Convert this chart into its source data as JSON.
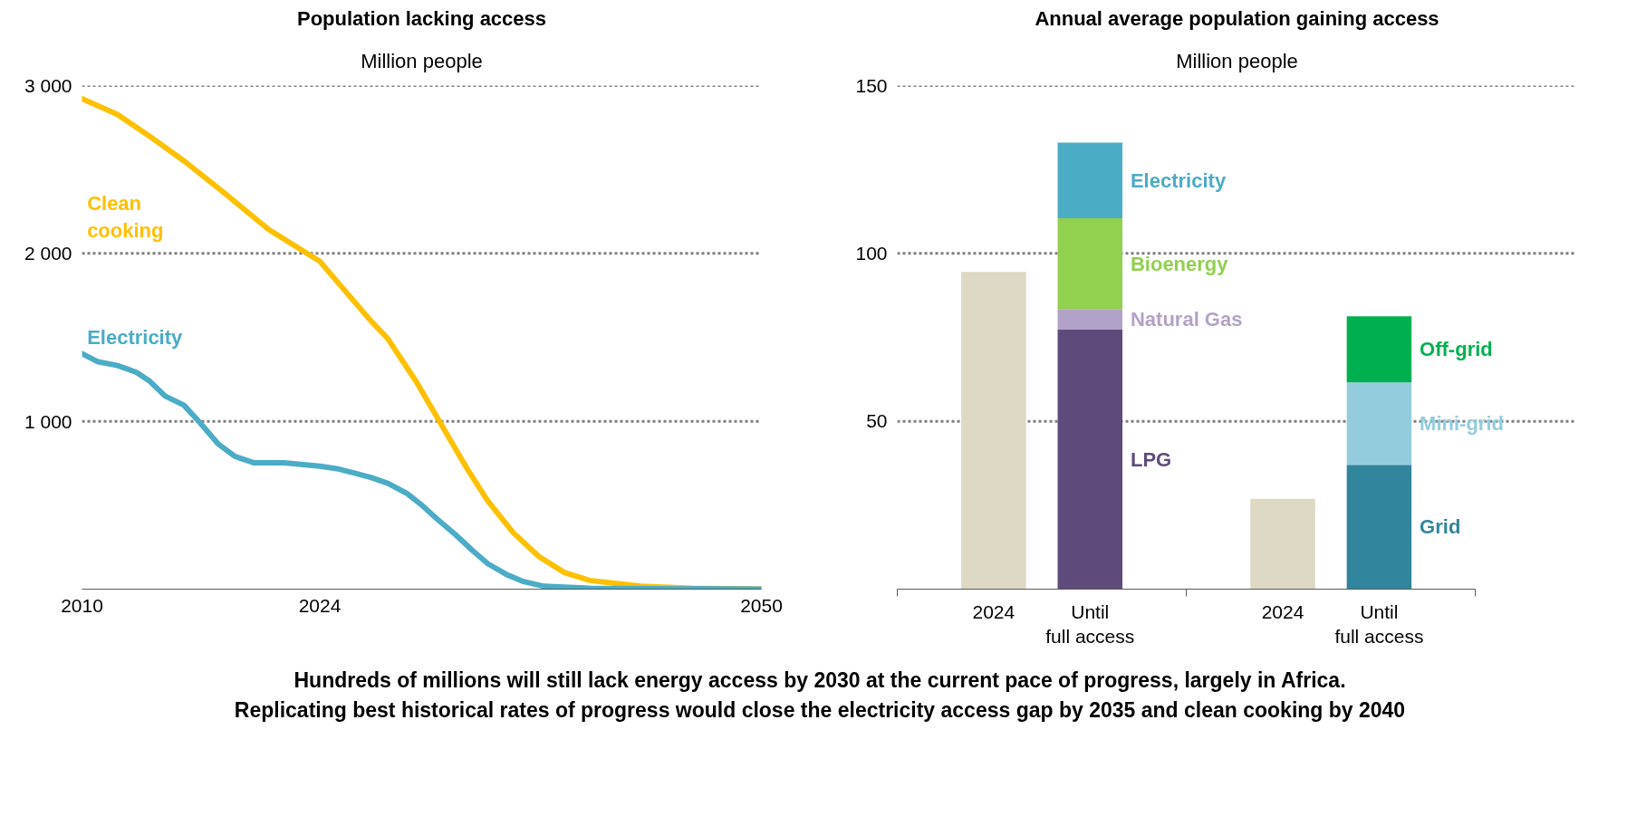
{
  "chart_data": [
    {
      "type": "line",
      "title": "Population lacking access",
      "subtitle": "Million people",
      "xlim": [
        2010,
        2050
      ],
      "ylim": [
        0,
        3000
      ],
      "xticks": [
        2010,
        2024,
        2050
      ],
      "yticks": [
        {
          "value": 1000,
          "label": "1 000"
        },
        {
          "value": 2000,
          "label": "2 000"
        },
        {
          "value": 3000,
          "label": "3 000"
        }
      ],
      "grid": "y",
      "annotations": [
        "Hundreds of millions will still lack energy access by 2030 at the current pace of progress, largely in Africa.",
        "Replicating best historical rates of progress would close the electricity access gap by 2035 and clean cooking by 2040"
      ],
      "series": [
        {
          "name": "Clean cooking",
          "color": "#ffc000",
          "x": [
            2010,
            2012.1,
            2014,
            2016.1,
            2018.3,
            2021,
            2022.5,
            2024,
            2025.5,
            2027,
            2028,
            2029.7,
            2031.2,
            2032.7,
            2033.9,
            2035.4,
            2036.9,
            2038.4,
            2039.9,
            2042.9,
            2045.9,
            2050
          ],
          "values": [
            2922,
            2827,
            2697,
            2544,
            2367,
            2142,
            2048,
            1953,
            1776,
            1599,
            1493,
            1233,
            973,
            713,
            524,
            335,
            194,
            99,
            52,
            17,
            5,
            0
          ]
        },
        {
          "name": "Electricity",
          "color": "#4bacc6",
          "x": [
            2010,
            2010.9,
            2012.1,
            2013.2,
            2014,
            2014.9,
            2016,
            2016.9,
            2018,
            2019,
            2020.1,
            2021.9,
            2024,
            2025,
            2026.1,
            2027,
            2028,
            2029.1,
            2030,
            2030.9,
            2032,
            2033,
            2033.9,
            2035,
            2036,
            2037.2,
            2039.9,
            2050
          ],
          "values": [
            1403,
            1356,
            1332,
            1292,
            1238,
            1150,
            1096,
            997,
            867,
            791,
            753,
            753,
            732,
            718,
            690,
            666,
            631,
            572,
            501,
            418,
            324,
            229,
            151,
            87,
            45,
            17,
            5,
            0
          ]
        }
      ]
    },
    {
      "type": "bar",
      "stacked": true,
      "title": "Annual average population gaining access",
      "subtitle": "Million people",
      "ylim": [
        0,
        150
      ],
      "yticks": [
        50,
        100,
        150
      ],
      "grid": "y",
      "categories": [
        "2024",
        "Until full access",
        "2024",
        "Until full access"
      ],
      "series": [
        {
          "color": "#ddd8c4",
          "values": [
            94.5,
            null,
            26.9,
            null
          ]
        },
        {
          "name": "LPG",
          "color": "#5f4b7b",
          "values": [
            null,
            77.3,
            null,
            null
          ]
        },
        {
          "name": "Natural Gas",
          "color": "#b3a2c7",
          "values": [
            null,
            6.1,
            null,
            null
          ]
        },
        {
          "name": "Bioenergy",
          "color": "#92d050",
          "values": [
            null,
            27.1,
            null,
            null
          ]
        },
        {
          "name": "Electricity",
          "color": "#4bacc6",
          "values": [
            null,
            22.5,
            null,
            null
          ]
        },
        {
          "name": "Grid",
          "color": "#31859c",
          "values": [
            null,
            null,
            null,
            37.0
          ]
        },
        {
          "name": "Mini-grid",
          "color": "#93cddd",
          "values": [
            null,
            null,
            null,
            24.6
          ]
        },
        {
          "name": "Off-grid",
          "color": "#00b050",
          "values": [
            null,
            null,
            null,
            19.7
          ]
        }
      ]
    }
  ]
}
